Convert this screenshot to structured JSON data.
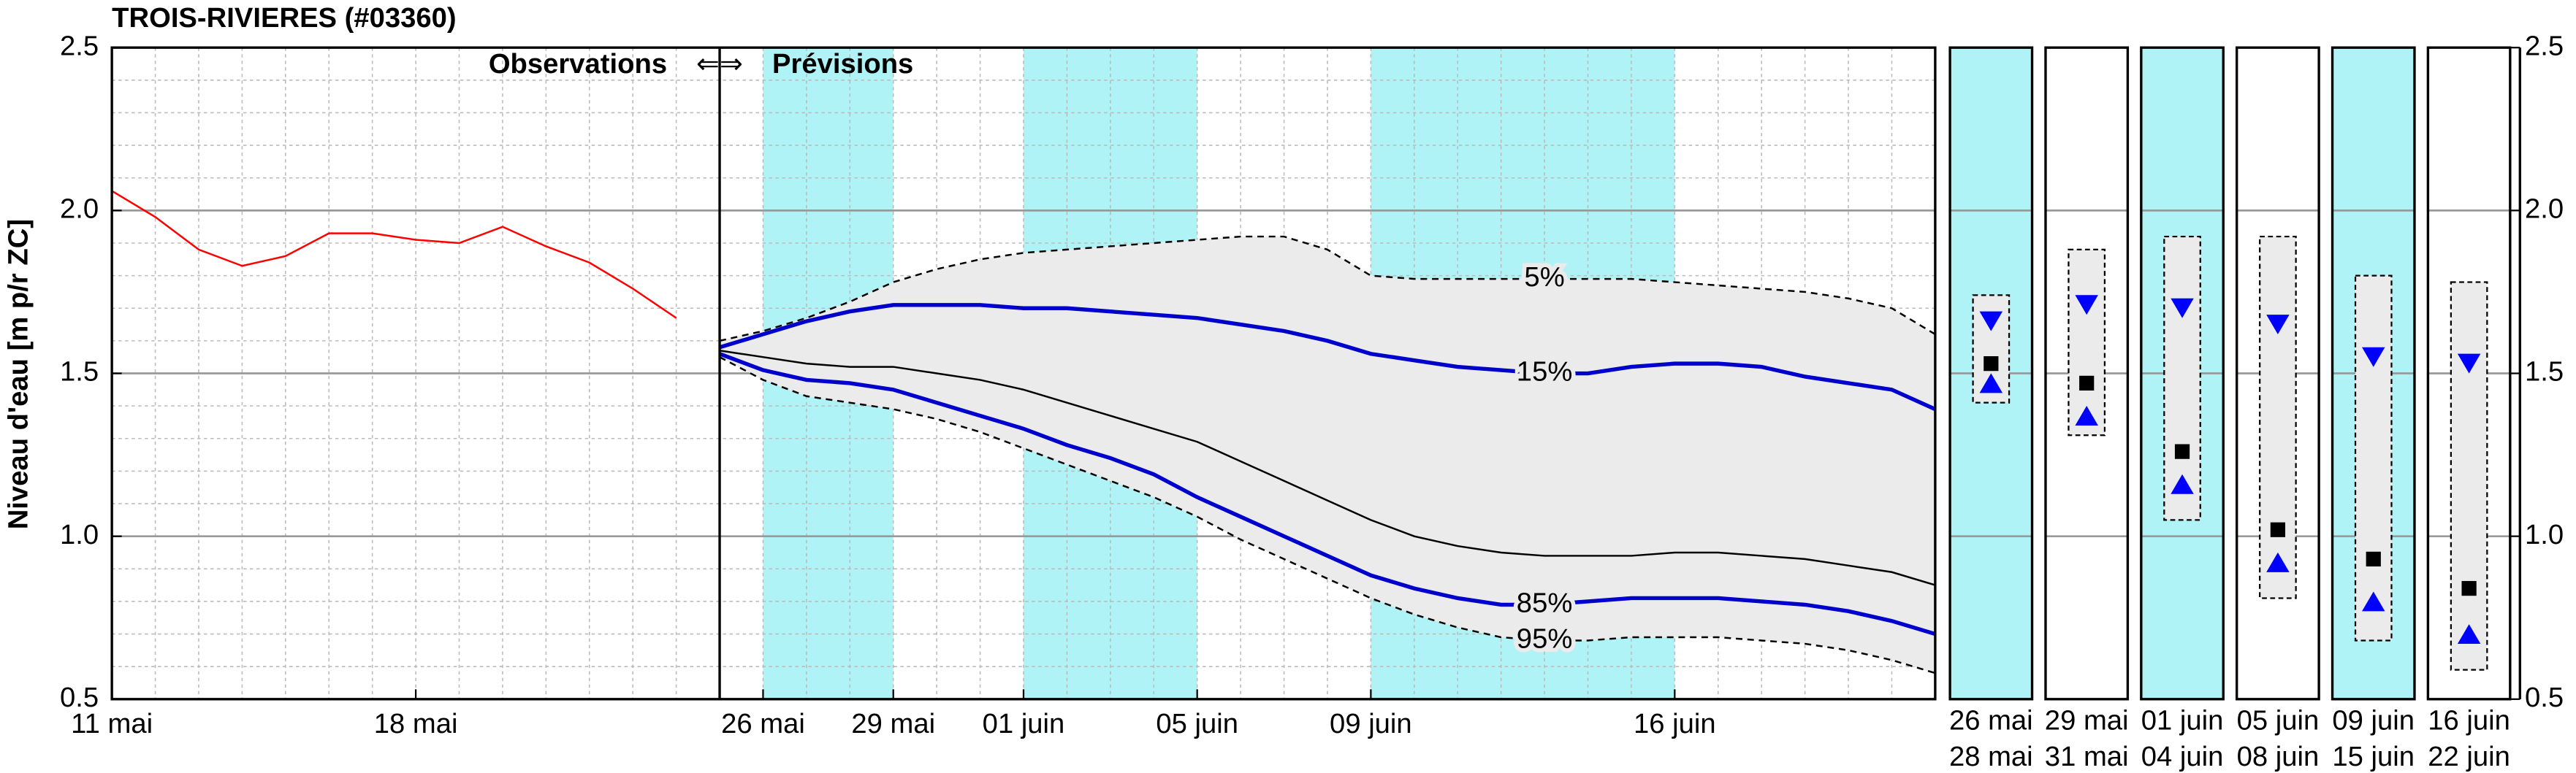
{
  "chart_data": [
    {
      "type": "line",
      "title": "TROIS-RIVIERES (#03360)",
      "ylabel": "Niveau d'eau [m p/r ZC]",
      "observed_label": "Observations",
      "arrows": "⇐⇒",
      "forecast_label": "Prévisions",
      "divider": "05-25",
      "shaded_periods": [
        [
          "05-26",
          "05-29"
        ],
        [
          "06-01",
          "06-05"
        ],
        [
          "06-09",
          "06-16"
        ]
      ],
      "shade_color": "#b0f3f6",
      "band_color": "#ebebeb",
      "grid": true,
      "y_minor_step": 0.1,
      "xlim": [
        "05-11",
        "06-22"
      ],
      "xticks": [
        {
          "value": "05-11",
          "label": "11 mai"
        },
        {
          "value": "05-18",
          "label": "18 mai"
        },
        {
          "value": "05-26",
          "label": "26 mai"
        },
        {
          "value": "05-29",
          "label": "29 mai"
        },
        {
          "value": "06-01",
          "label": "01 juin"
        },
        {
          "value": "06-05",
          "label": "05 juin"
        },
        {
          "value": "06-09",
          "label": "09 juin"
        },
        {
          "value": "06-16",
          "label": "16 juin"
        }
      ],
      "ylim": [
        0.5,
        2.5
      ],
      "yticks": [
        0.5,
        {
          "value": 1,
          "label": "1.0"
        },
        1.5,
        {
          "value": 2,
          "label": "2.0"
        },
        2.5
      ],
      "x": [
        "05-11",
        "05-12",
        "05-13",
        "05-14",
        "05-15",
        "05-16",
        "05-17",
        "05-18",
        "05-19",
        "05-20",
        "05-21",
        "05-22",
        "05-23",
        "05-24",
        "05-25",
        "05-26",
        "05-27",
        "05-28",
        "05-29",
        "05-30",
        "05-31",
        "06-01",
        "06-02",
        "06-03",
        "06-04",
        "06-05",
        "06-06",
        "06-07",
        "06-08",
        "06-09",
        "06-10",
        "06-11",
        "06-12",
        "06-13",
        "06-14",
        "06-15",
        "06-16",
        "06-17",
        "06-18",
        "06-19",
        "06-20",
        "06-21",
        "06-22"
      ],
      "series": [
        {
          "name": "5%",
          "color": "#000000",
          "dash": true,
          "labelled": true,
          "values": [
            null,
            null,
            null,
            null,
            null,
            null,
            null,
            null,
            null,
            null,
            null,
            null,
            null,
            null,
            1.6,
            1.63,
            1.67,
            1.72,
            1.78,
            1.82,
            1.85,
            1.87,
            1.88,
            1.89,
            1.9,
            1.91,
            1.92,
            1.92,
            1.88,
            1.8,
            1.79,
            1.79,
            1.79,
            1.79,
            1.79,
            1.79,
            1.78,
            1.77,
            1.76,
            1.75,
            1.73,
            1.7,
            1.62
          ]
        },
        {
          "name": "15%",
          "color": "#0000cc",
          "bold": true,
          "labelled": true,
          "values": [
            null,
            null,
            null,
            null,
            null,
            null,
            null,
            null,
            null,
            null,
            null,
            null,
            null,
            null,
            1.58,
            1.62,
            1.66,
            1.69,
            1.71,
            1.71,
            1.71,
            1.7,
            1.7,
            1.69,
            1.68,
            1.67,
            1.65,
            1.63,
            1.6,
            1.56,
            1.54,
            1.52,
            1.51,
            1.5,
            1.5,
            1.52,
            1.53,
            1.53,
            1.52,
            1.49,
            1.47,
            1.45,
            1.39
          ]
        },
        {
          "color": "#000000",
          "values": [
            null,
            null,
            null,
            null,
            null,
            null,
            null,
            null,
            null,
            null,
            null,
            null,
            null,
            null,
            1.57,
            1.55,
            1.53,
            1.52,
            1.52,
            1.5,
            1.48,
            1.45,
            1.41,
            1.37,
            1.33,
            1.29,
            1.23,
            1.17,
            1.11,
            1.05,
            1.0,
            0.97,
            0.95,
            0.94,
            0.94,
            0.94,
            0.95,
            0.95,
            0.94,
            0.93,
            0.91,
            0.89,
            0.85
          ]
        },
        {
          "name": "85%",
          "color": "#0000cc",
          "bold": true,
          "labelled": true,
          "values": [
            null,
            null,
            null,
            null,
            null,
            null,
            null,
            null,
            null,
            null,
            null,
            null,
            null,
            null,
            1.56,
            1.51,
            1.48,
            1.47,
            1.45,
            1.41,
            1.37,
            1.33,
            1.28,
            1.24,
            1.19,
            1.12,
            1.06,
            1.0,
            0.94,
            0.88,
            0.84,
            0.81,
            0.79,
            0.79,
            0.8,
            0.81,
            0.81,
            0.81,
            0.8,
            0.79,
            0.77,
            0.74,
            0.7
          ]
        },
        {
          "name": "95%",
          "color": "#000000",
          "dash": true,
          "labelled": true,
          "values": [
            null,
            null,
            null,
            null,
            null,
            null,
            null,
            null,
            null,
            null,
            null,
            null,
            null,
            null,
            1.55,
            1.48,
            1.43,
            1.41,
            1.39,
            1.36,
            1.32,
            1.27,
            1.22,
            1.17,
            1.12,
            1.06,
            0.99,
            0.93,
            0.87,
            0.81,
            0.76,
            0.72,
            0.69,
            0.68,
            0.68,
            0.69,
            0.69,
            0.69,
            0.68,
            0.67,
            0.65,
            0.62,
            0.58
          ]
        },
        {
          "color": "#ff0000",
          "values": [
            2.06,
            1.98,
            1.88,
            1.83,
            1.86,
            1.93,
            1.93,
            1.91,
            1.9,
            1.95,
            1.89,
            1.84,
            1.76,
            1.67,
            null,
            null,
            null,
            null,
            null,
            null,
            null,
            null,
            null,
            null,
            null,
            null,
            null,
            null,
            null,
            null,
            null,
            null,
            null,
            null,
            null,
            null,
            null,
            null,
            null,
            null,
            null,
            null,
            null
          ]
        }
      ]
    },
    {
      "type": "range",
      "marker_color": "#0000ff",
      "box_color": "#ebebeb",
      "shade_color": "#b0f3f6",
      "ylim": [
        0.5,
        2.5
      ],
      "yticks": [
        0.5,
        {
          "value": 1,
          "label": "1.0"
        },
        1.5,
        {
          "value": 2,
          "label": "2.0"
        },
        2.5
      ],
      "periods": [
        {
          "start": "26 mai",
          "end": "28 mai",
          "shaded": true,
          "p5": 1.41,
          "p15": 1.66,
          "p50": 1.53,
          "p85": 1.47,
          "p95": 1.74
        },
        {
          "start": "29 mai",
          "end": "31 mai",
          "shaded": false,
          "p5": 1.31,
          "p15": 1.71,
          "p50": 1.47,
          "p85": 1.37,
          "p95": 1.88
        },
        {
          "start": "01 juin",
          "end": "04 juin",
          "shaded": true,
          "p5": 1.05,
          "p15": 1.7,
          "p50": 1.26,
          "p85": 1.16,
          "p95": 1.92
        },
        {
          "start": "05 juin",
          "end": "08 juin",
          "shaded": false,
          "p5": 0.81,
          "p15": 1.65,
          "p50": 1.02,
          "p85": 0.92,
          "p95": 1.92
        },
        {
          "start": "09 juin",
          "end": "15 juin",
          "shaded": true,
          "p5": 0.68,
          "p15": 1.55,
          "p50": 0.93,
          "p85": 0.8,
          "p95": 1.8
        },
        {
          "start": "16 juin",
          "end": "22 juin",
          "shaded": false,
          "p5": 0.59,
          "p15": 1.53,
          "p50": 0.84,
          "p85": 0.7,
          "p95": 1.78
        }
      ]
    }
  ]
}
